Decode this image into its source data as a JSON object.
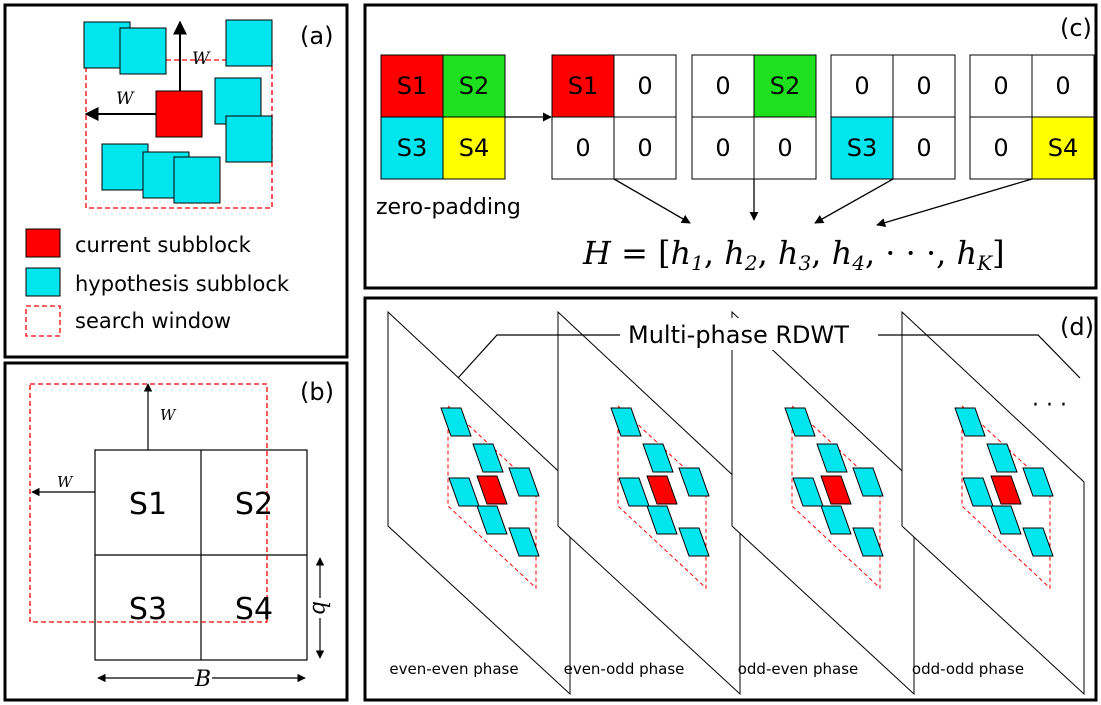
{
  "colors": {
    "current": "#ff0000",
    "hypothesis": "#00e5ee",
    "s2": "#1fe01f",
    "s4": "#ffff00",
    "window": "#ff0000",
    "stroke": "#000000"
  },
  "panel_a": {
    "label": "(a)",
    "w_label": "W",
    "legend": {
      "current": "current subblock",
      "hypothesis": "hypothesis subblock",
      "window": "search window"
    }
  },
  "panel_b": {
    "label": "(b)",
    "w_label": "W",
    "cells": [
      "S1",
      "S2",
      "S3",
      "S4"
    ],
    "b_label": "B",
    "side_label": "b"
  },
  "panel_c": {
    "label": "(c)",
    "source": [
      "S1",
      "S2",
      "S3",
      "S4"
    ],
    "caption": "zero-padding",
    "padded": [
      [
        "S1",
        "0",
        "0",
        "0"
      ],
      [
        "0",
        "S2",
        "0",
        "0"
      ],
      [
        "0",
        "0",
        "S3",
        "0"
      ],
      [
        "0",
        "0",
        "0",
        "S4"
      ]
    ],
    "formula": {
      "lhs": "H",
      "eq": " = [",
      "terms": [
        "h",
        "h",
        "h",
        "h"
      ],
      "subs": [
        "1",
        "2",
        "3",
        "4"
      ],
      "dots": "· · ·",
      "last": "h",
      "last_sub": "K",
      "close": "]"
    }
  },
  "panel_d": {
    "label": "(d)",
    "title": "Multi-phase RDWT",
    "ellipsis": "· · ·",
    "phases": [
      "even-even phase",
      "even-odd phase",
      "odd-even phase",
      "odd-odd phase"
    ]
  }
}
